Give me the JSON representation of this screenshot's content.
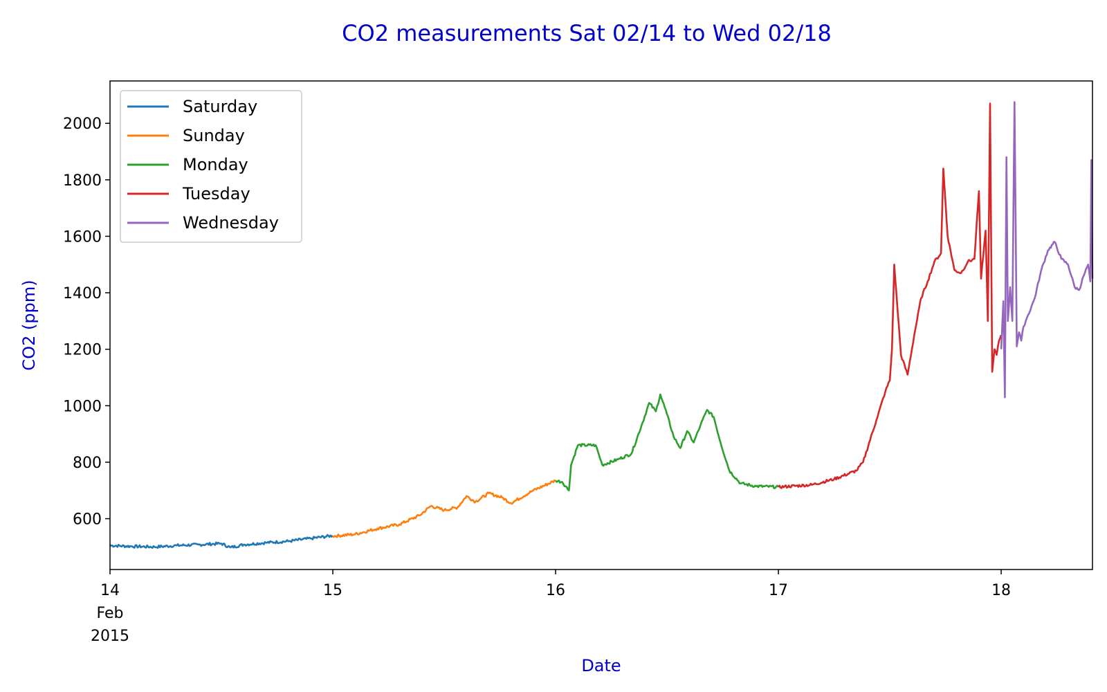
{
  "chart_data": {
    "type": "line",
    "title": "CO2 measurements Sat 02/14 to Wed 02/18",
    "xlabel": "Date",
    "ylabel": "CO2 (ppm)",
    "x_ticks": [
      {
        "x": 14,
        "lines": [
          "14",
          "Feb",
          "2015"
        ]
      },
      {
        "x": 15,
        "lines": [
          "15"
        ]
      },
      {
        "x": 16,
        "lines": [
          "16"
        ]
      },
      {
        "x": 17,
        "lines": [
          "17"
        ]
      },
      {
        "x": 18,
        "lines": [
          "18"
        ]
      }
    ],
    "y_ticks": [
      600,
      800,
      1000,
      1200,
      1400,
      1600,
      1800,
      2000
    ],
    "xlim": [
      "2015-02-14 00:00",
      "2015-02-18 09:50"
    ],
    "ylim": [
      420,
      2150
    ],
    "grid": false,
    "legend_position": "top-left",
    "colors": {
      "title": "#0000cc",
      "axis_labels": "#0000cc"
    },
    "series": [
      {
        "name": "Saturday",
        "color": "#1f77b4",
        "x": [
          "2015-02-14 00:00",
          "2015-02-14 02:24",
          "2015-02-14 04:48",
          "2015-02-14 07:12",
          "2015-02-14 09:36",
          "2015-02-14 12:00",
          "2015-02-14 12:58",
          "2015-02-14 14:24",
          "2015-02-14 16:48",
          "2015-02-14 19:12",
          "2015-02-14 21:36",
          "2015-02-14 23:59"
        ],
        "y": [
          505,
          502,
          500,
          505,
          508,
          512,
          498,
          508,
          515,
          520,
          530,
          540
        ]
      },
      {
        "name": "Sunday",
        "color": "#ff7f0e",
        "x": [
          "2015-02-15 00:00",
          "2015-02-15 02:24",
          "2015-02-15 04:48",
          "2015-02-15 07:12",
          "2015-02-15 09:22",
          "2015-02-15 10:34",
          "2015-02-15 12:00",
          "2015-02-15 13:26",
          "2015-02-15 14:24",
          "2015-02-15 15:22",
          "2015-02-15 16:48",
          "2015-02-15 18:14",
          "2015-02-15 19:12",
          "2015-02-15 21:36",
          "2015-02-15 23:59"
        ],
        "y": [
          538,
          545,
          565,
          580,
          612,
          645,
          630,
          640,
          680,
          660,
          690,
          675,
          655,
          700,
          735
        ]
      },
      {
        "name": "Monday",
        "color": "#2ca02c",
        "x": [
          "2015-02-16 00:00",
          "2015-02-16 00:43",
          "2015-02-16 01:26",
          "2015-02-16 01:40",
          "2015-02-16 02:24",
          "2015-02-16 04:19",
          "2015-02-16 05:02",
          "2015-02-16 06:43",
          "2015-02-16 08:10",
          "2015-02-16 09:22",
          "2015-02-16 10:05",
          "2015-02-16 10:48",
          "2015-02-16 11:17",
          "2015-02-16 12:00",
          "2015-02-16 12:43",
          "2015-02-16 13:26",
          "2015-02-16 14:10",
          "2015-02-16 14:53",
          "2015-02-16 15:36",
          "2015-02-16 16:19",
          "2015-02-16 17:02",
          "2015-02-16 17:46",
          "2015-02-16 18:43",
          "2015-02-16 19:55",
          "2015-02-16 21:36",
          "2015-02-16 23:59"
        ],
        "y": [
          735,
          730,
          700,
          790,
          860,
          860,
          790,
          810,
          830,
          940,
          1010,
          980,
          1040,
          970,
          890,
          850,
          910,
          870,
          930,
          985,
          960,
          870,
          770,
          725,
          715,
          712
        ]
      },
      {
        "name": "Tuesday",
        "color": "#d62728",
        "x": [
          "2015-02-17 00:00",
          "2015-02-17 03:36",
          "2015-02-17 06:00",
          "2015-02-17 08:24",
          "2015-02-17 09:07",
          "2015-02-17 10:34",
          "2015-02-17 11:31",
          "2015-02-17 12:00",
          "2015-02-17 12:14",
          "2015-02-17 12:29",
          "2015-02-17 13:12",
          "2015-02-17 13:55",
          "2015-02-17 14:38",
          "2015-02-17 15:22",
          "2015-02-17 16:05",
          "2015-02-17 16:48",
          "2015-02-17 17:31",
          "2015-02-17 17:46",
          "2015-02-17 18:14",
          "2015-02-17 18:58",
          "2015-02-17 19:41",
          "2015-02-17 20:24",
          "2015-02-17 21:07",
          "2015-02-17 21:36",
          "2015-02-17 21:50",
          "2015-02-17 22:19",
          "2015-02-17 22:34",
          "2015-02-17 22:48",
          "2015-02-17 23:02",
          "2015-02-17 23:17",
          "2015-02-17 23:31",
          "2015-02-17 23:46",
          "2015-02-17 23:59"
        ],
        "y": [
          712,
          720,
          740,
          770,
          800,
          950,
          1050,
          1090,
          1200,
          1500,
          1180,
          1110,
          1250,
          1380,
          1440,
          1510,
          1540,
          1840,
          1600,
          1480,
          1470,
          1510,
          1520,
          1760,
          1450,
          1620,
          1300,
          2070,
          1120,
          1200,
          1180,
          1230,
          1250
        ]
      },
      {
        "name": "Wednesday",
        "color": "#9467bd",
        "x": [
          "2015-02-18 00:00",
          "2015-02-18 00:14",
          "2015-02-18 00:24",
          "2015-02-18 00:34",
          "2015-02-18 00:43",
          "2015-02-18 00:58",
          "2015-02-18 01:12",
          "2015-02-18 01:26",
          "2015-02-18 01:41",
          "2015-02-18 01:55",
          "2015-02-18 02:10",
          "2015-02-18 02:24",
          "2015-02-18 02:53",
          "2015-02-18 03:36",
          "2015-02-18 04:19",
          "2015-02-18 05:02",
          "2015-02-18 05:46",
          "2015-02-18 06:29",
          "2015-02-18 07:12",
          "2015-02-18 07:55",
          "2015-02-18 08:24",
          "2015-02-18 08:53",
          "2015-02-18 09:22",
          "2015-02-18 09:36",
          "2015-02-18 09:43",
          "2015-02-18 09:50"
        ],
        "y": [
          1200,
          1370,
          1030,
          1880,
          1300,
          1420,
          1300,
          2075,
          1210,
          1260,
          1230,
          1280,
          1320,
          1380,
          1480,
          1550,
          1580,
          1520,
          1500,
          1420,
          1410,
          1460,
          1500,
          1440,
          1870,
          1450
        ]
      }
    ]
  }
}
